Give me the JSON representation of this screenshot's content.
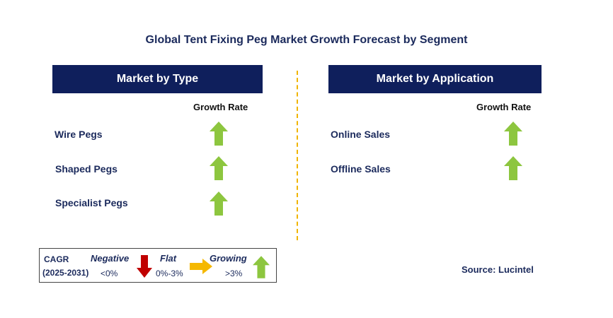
{
  "title": "Global Tent Fixing Peg Market Growth Forecast by Segment",
  "left_panel": {
    "header": "Market by Type",
    "column_header": "Growth Rate",
    "rows": [
      {
        "label": "Wire Pegs",
        "trend": "growing"
      },
      {
        "label": "Shaped Pegs",
        "trend": "growing"
      },
      {
        "label": "Specialist Pegs",
        "trend": "growing"
      }
    ]
  },
  "right_panel": {
    "header": "Market by Application",
    "column_header": "Growth Rate",
    "rows": [
      {
        "label": "Online Sales",
        "trend": "growing"
      },
      {
        "label": "Offline Sales",
        "trend": "growing"
      }
    ]
  },
  "legend": {
    "cagr_label": "CAGR",
    "period": "(2025-2031)",
    "negative_label": "Negative",
    "negative_range": "<0%",
    "flat_label": "Flat",
    "flat_range": "0%-3%",
    "growing_label": "Growing",
    "growing_range": ">3%"
  },
  "source": "Source: Lucintel",
  "colors": {
    "header_bg": "#0f1f5c",
    "growing": "#8dc63f",
    "negative": "#c00000",
    "flat": "#f5b800",
    "divider": "#f0b400"
  }
}
